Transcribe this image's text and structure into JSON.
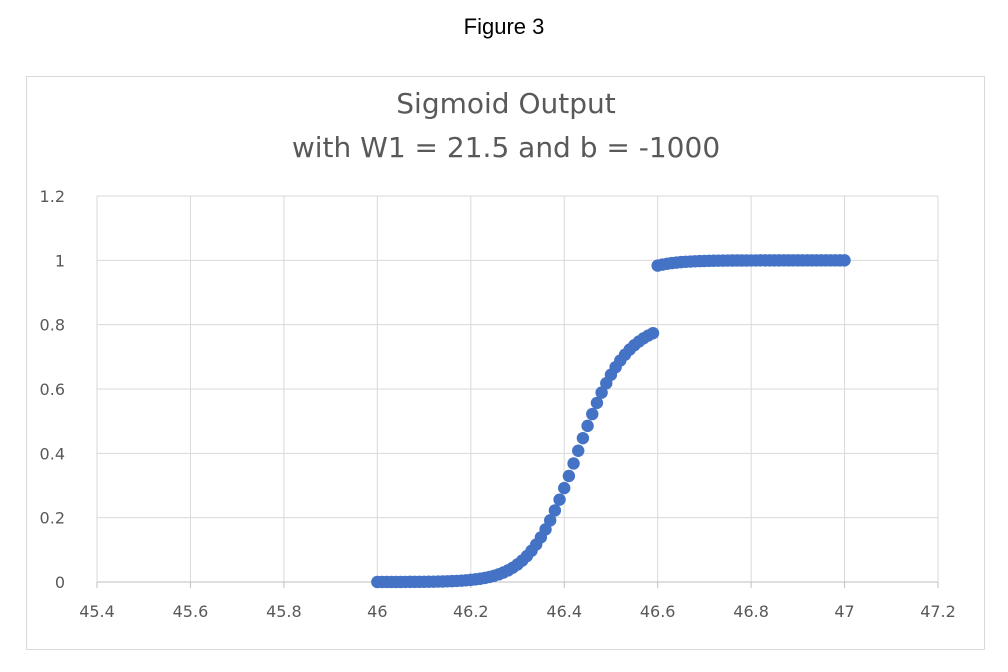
{
  "figure_caption": "Figure 3",
  "colors": {
    "series": "#4472c4",
    "gridline": "#d9d9d9",
    "axis_line": "#bfbfbf",
    "text": "#595959"
  },
  "chart_data": {
    "type": "scatter",
    "title_lines": [
      "Sigmoid Output",
      "with W1 = 21.5 and b = -1000"
    ],
    "xlabel": "",
    "ylabel": "",
    "xlim": [
      45.4,
      47.2
    ],
    "ylim": [
      0,
      1.2
    ],
    "x_ticks": [
      "45.4",
      "45.6",
      "45.8",
      "46",
      "46.2",
      "46.4",
      "46.6",
      "46.8",
      "47",
      "47.2"
    ],
    "y_ticks": [
      "0",
      "0.2",
      "0.4",
      "0.6",
      "0.8",
      "1",
      "1.2"
    ],
    "grid": true,
    "legend": "none",
    "series": [
      {
        "x": [
          46.0,
          46.01,
          46.02,
          46.03,
          46.04,
          46.05,
          46.06,
          46.07,
          46.08,
          46.09,
          46.1,
          46.11,
          46.12,
          46.13,
          46.14,
          46.15,
          46.16,
          46.17,
          46.18,
          46.19,
          46.2,
          46.21,
          46.22,
          46.23,
          46.24,
          46.25,
          46.26,
          46.27,
          46.28,
          46.29,
          46.3,
          46.31,
          46.32,
          46.33,
          46.34,
          46.35,
          46.36,
          46.37,
          46.38,
          46.39,
          46.4,
          46.41,
          46.42,
          46.43,
          46.44,
          46.45,
          46.46,
          46.47,
          46.48,
          46.49,
          46.5,
          46.51,
          46.52,
          46.53,
          46.54,
          46.55,
          46.56,
          46.57,
          46.58,
          46.59,
          46.6,
          46.61,
          46.62,
          46.63,
          46.64,
          46.65,
          46.66,
          46.67,
          46.68,
          46.69,
          46.7,
          46.71,
          46.72,
          46.73,
          46.74,
          46.75,
          46.76,
          46.77,
          46.78,
          46.79,
          46.8,
          46.81,
          46.82,
          46.83,
          46.84,
          46.85,
          46.86,
          46.87,
          46.88,
          46.89,
          46.9,
          46.91,
          46.92,
          46.93,
          46.94,
          46.95,
          46.96,
          46.97,
          46.98,
          46.99,
          47.0
        ],
        "y": [
          0.0,
          0.0001,
          0.0001,
          0.0001,
          0.0002,
          0.0002,
          0.0003,
          0.0004,
          0.0005,
          0.0006,
          0.0007,
          0.0009,
          0.0011,
          0.0014,
          0.0017,
          0.0022,
          0.0027,
          0.0034,
          0.0042,
          0.0053,
          0.0066,
          0.0082,
          0.0101,
          0.0126,
          0.0156,
          0.0193,
          0.0239,
          0.0295,
          0.0363,
          0.0446,
          0.0546,
          0.0665,
          0.0806,
          0.0972,
          0.1165,
          0.1386,
          0.1636,
          0.1916,
          0.2225,
          0.256,
          0.2919,
          0.3296,
          0.3685,
          0.408,
          0.4472,
          0.4855,
          0.5221,
          0.5567,
          0.5887,
          0.618,
          0.6443,
          0.6678,
          0.6885,
          0.7066,
          0.7224,
          0.736,
          0.7477,
          0.7577,
          0.7662,
          0.7735,
          0.9836,
          0.9868,
          0.9893,
          0.9914,
          0.993,
          0.9944,
          0.9955,
          0.9963,
          0.9971,
          0.9976,
          0.9981,
          0.9985,
          0.9988,
          0.999,
          0.9992,
          0.9994,
          0.9995,
          0.9996,
          0.9997,
          0.9997,
          0.9998,
          0.9998,
          0.9999,
          0.9999,
          0.9999,
          0.9999,
          0.9999,
          1.0,
          1.0,
          1.0,
          1.0,
          1.0,
          1.0,
          1.0,
          1.0,
          1.0,
          1.0,
          1.0,
          1.0,
          1.0,
          1.0
        ]
      }
    ]
  }
}
